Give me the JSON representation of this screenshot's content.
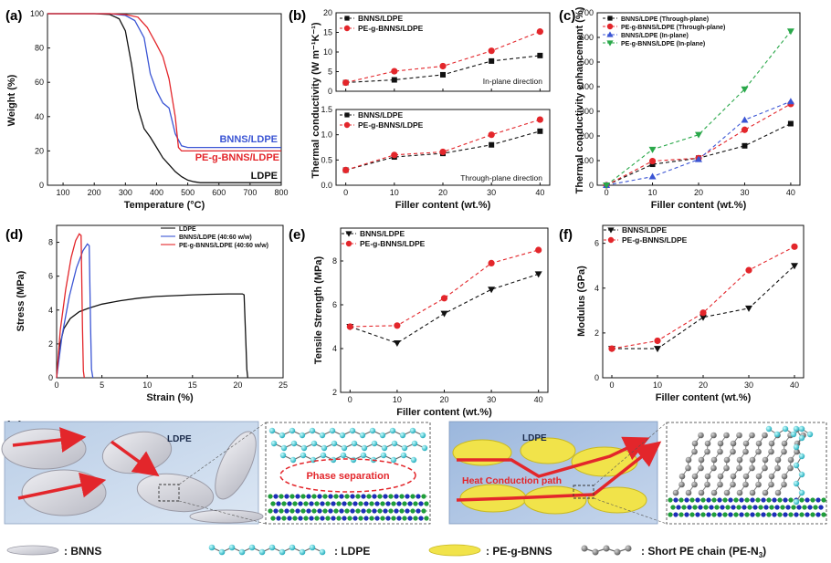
{
  "colors": {
    "black": "#111111",
    "red": "#e3262b",
    "blue": "#3b55d4",
    "green": "#2aa84a"
  },
  "panel_labels": [
    "(a)",
    "(b)",
    "(c)",
    "(d)",
    "(e)",
    "(f)",
    "(g)"
  ],
  "chart_data": [
    {
      "id": "a",
      "type": "line",
      "xlabel": "Temperature (°C)",
      "ylabel": "Weight (%)",
      "xlim": [
        50,
        800
      ],
      "ylim": [
        0,
        100
      ],
      "xticks": [
        100,
        200,
        300,
        400,
        500,
        600,
        700,
        800
      ],
      "yticks": [
        0,
        20,
        40,
        60,
        80,
        100
      ],
      "annotations": [
        "BNNS/LDPE",
        "PE-g-BNNS/LDPE",
        "LDPE"
      ],
      "series": [
        {
          "name": "LDPE",
          "color": "black",
          "x": [
            50,
            200,
            250,
            280,
            300,
            320,
            340,
            360,
            380,
            400,
            420,
            440,
            460,
            480,
            500,
            520,
            540,
            560,
            600,
            700,
            800
          ],
          "y": [
            100,
            100,
            99.5,
            97,
            90,
            70,
            45,
            33,
            28,
            22,
            16,
            12,
            8,
            5,
            3,
            2,
            1.5,
            1.5,
            1.5,
            1.5,
            1.5
          ]
        },
        {
          "name": "BNNS/LDPE",
          "color": "blue",
          "x": [
            50,
            250,
            300,
            330,
            360,
            380,
            400,
            420,
            440,
            460,
            480,
            500,
            520,
            600,
            800
          ],
          "y": [
            100,
            100,
            99,
            96,
            86,
            65,
            55,
            48,
            45,
            30,
            23,
            22,
            22,
            22,
            22
          ]
        },
        {
          "name": "PE-g-BNNS/LDPE",
          "color": "red",
          "x": [
            50,
            250,
            300,
            340,
            370,
            400,
            420,
            440,
            460,
            470,
            480,
            500,
            600,
            800
          ],
          "y": [
            100,
            100,
            99.5,
            98,
            92,
            82,
            75,
            62,
            40,
            22,
            20,
            20,
            20,
            20
          ]
        }
      ]
    },
    {
      "id": "b-top",
      "type": "line",
      "xlabel": "",
      "ylabel": "Thermal conductivity (W m⁻¹K⁻¹)",
      "annotation": "In-plane direction",
      "x": [
        0,
        10,
        20,
        30,
        40
      ],
      "ylim": [
        0,
        20
      ],
      "yticks": [
        0,
        5,
        10,
        15,
        20
      ],
      "xticks": [
        0,
        10,
        20,
        30,
        40
      ],
      "series": [
        {
          "name": "BNNS/LDPE",
          "color": "black",
          "marker": "square",
          "values": [
            2.2,
            2.9,
            4.2,
            7.7,
            9.1
          ]
        },
        {
          "name": "PE-g-BNNS/LDPE",
          "color": "red",
          "marker": "circle",
          "values": [
            2.2,
            5.1,
            6.4,
            10.3,
            15.2
          ]
        }
      ]
    },
    {
      "id": "b-bottom",
      "type": "line",
      "xlabel": "Filler content (wt.%)",
      "annotation": "Through-plane direction",
      "x": [
        0,
        10,
        20,
        30,
        40
      ],
      "ylim": [
        0,
        1.5
      ],
      "yticks": [
        0.0,
        0.5,
        1.0,
        1.5
      ],
      "xticks": [
        0,
        10,
        20,
        30,
        40
      ],
      "series": [
        {
          "name": "BNNS/LDPE",
          "color": "black",
          "marker": "square",
          "values": [
            0.3,
            0.56,
            0.63,
            0.8,
            1.07
          ]
        },
        {
          "name": "PE-g-BNNS/LDPE",
          "color": "red",
          "marker": "circle",
          "values": [
            0.3,
            0.6,
            0.66,
            1.0,
            1.3
          ]
        }
      ]
    },
    {
      "id": "c",
      "type": "line",
      "xlabel": "Filler content (wt.%)",
      "ylabel": "Thermal conductivity enhancement (%)",
      "x": [
        0,
        10,
        20,
        30,
        40
      ],
      "ylim": [
        0,
        700
      ],
      "yticks": [
        0,
        100,
        200,
        300,
        400,
        500,
        600,
        700
      ],
      "xticks": [
        0,
        10,
        20,
        30,
        40
      ],
      "series": [
        {
          "name": "BNNS/LDPE (Through-plane)",
          "color": "black",
          "marker": "square",
          "values": [
            0,
            85,
            110,
            160,
            250
          ]
        },
        {
          "name": "PE-g-BNNS/LDPE (Through-plane)",
          "color": "red",
          "marker": "circle",
          "values": [
            0,
            98,
            110,
            225,
            330
          ]
        },
        {
          "name": "BNNS/LDPE (In-plane)",
          "color": "blue",
          "marker": "triangle-up",
          "values": [
            0,
            35,
            105,
            265,
            340
          ]
        },
        {
          "name": "PE-g-BNNS/LDPE (In-plane)",
          "color": "green",
          "marker": "triangle-down",
          "values": [
            0,
            145,
            205,
            390,
            625
          ]
        }
      ]
    },
    {
      "id": "d",
      "type": "line",
      "xlabel": "Strain (%)",
      "ylabel": "Stress (MPa)",
      "xlim": [
        0,
        25
      ],
      "ylim": [
        0,
        9
      ],
      "xticks": [
        0,
        5,
        10,
        15,
        20,
        25
      ],
      "yticks": [
        0,
        2,
        4,
        6,
        8
      ],
      "series": [
        {
          "name": "LDPE",
          "color": "black",
          "x": [
            0,
            0.3,
            0.8,
            1.5,
            2.5,
            3.5,
            5,
            7,
            9,
            11,
            13,
            15,
            17,
            19,
            20.5,
            20.7,
            20.9,
            21,
            21.1
          ],
          "y": [
            0,
            1.8,
            2.9,
            3.5,
            3.9,
            4.1,
            4.35,
            4.55,
            4.7,
            4.8,
            4.85,
            4.9,
            4.93,
            4.95,
            4.95,
            4.9,
            2.0,
            0.5,
            0
          ]
        },
        {
          "name": "BNNS/LDPE (40:60 w/w)",
          "color": "blue",
          "x": [
            0,
            0.6,
            1.4,
            2.2,
            2.9,
            3.4,
            3.6,
            3.75,
            3.85,
            4.0
          ],
          "y": [
            0,
            2.5,
            4.8,
            6.5,
            7.5,
            7.9,
            7.8,
            3.0,
            0.5,
            0
          ]
        },
        {
          "name": "PE-g-BNNS/LDPE (40:60 w/w)",
          "color": "red",
          "x": [
            0,
            0.4,
            1.0,
            1.6,
            2.1,
            2.5,
            2.7,
            2.85,
            2.95,
            3.05
          ],
          "y": [
            0,
            2.8,
            5.2,
            7.1,
            8.1,
            8.5,
            8.4,
            3.0,
            0.4,
            0
          ]
        }
      ]
    },
    {
      "id": "e",
      "type": "line",
      "xlabel": "Filler content (wt.%)",
      "ylabel": "Tensile Strength (MPa)",
      "x": [
        0,
        10,
        20,
        30,
        40
      ],
      "ylim": [
        2,
        9.5
      ],
      "yticks": [
        2,
        4,
        6,
        8
      ],
      "xticks": [
        0,
        10,
        20,
        30,
        40
      ],
      "series": [
        {
          "name": "BNNS/LDPE",
          "color": "black",
          "marker": "triangle-down",
          "values": [
            5.0,
            4.25,
            5.6,
            6.7,
            7.4
          ]
        },
        {
          "name": "PE-g-BNNS/LDPE",
          "color": "red",
          "marker": "circle",
          "values": [
            5.0,
            5.05,
            6.3,
            7.9,
            8.5
          ]
        }
      ]
    },
    {
      "id": "f",
      "type": "line",
      "xlabel": "Filler content (wt.%)",
      "ylabel": "Modulus (GPa)",
      "x": [
        0,
        10,
        20,
        30,
        40
      ],
      "ylim": [
        0,
        6.8
      ],
      "yticks": [
        0,
        2,
        4,
        6
      ],
      "xticks": [
        0,
        10,
        20,
        30,
        40
      ],
      "series": [
        {
          "name": "BNNS/LDPE",
          "color": "black",
          "marker": "triangle-down",
          "values": [
            1.3,
            1.3,
            2.7,
            3.1,
            5.0
          ]
        },
        {
          "name": "PE-g-BNNS/LDPE",
          "color": "red",
          "marker": "circle",
          "values": [
            1.3,
            1.65,
            2.9,
            4.8,
            5.85
          ]
        }
      ]
    }
  ],
  "schematic": {
    "ldpe_label_left": "LDPE",
    "phase_separation": "Phase separation",
    "ldpe_label_right": "LDPE",
    "heat_path": "Heat Conduction path"
  },
  "legend_bottom": {
    "bnns": ": BNNS",
    "ldpe": ": LDPE",
    "pe_g_bnns": ": PE-g-BNNS",
    "short_pe": ": Short PE chain (PE-N",
    "short_pe_sub": "3",
    "short_pe_close": ")"
  }
}
